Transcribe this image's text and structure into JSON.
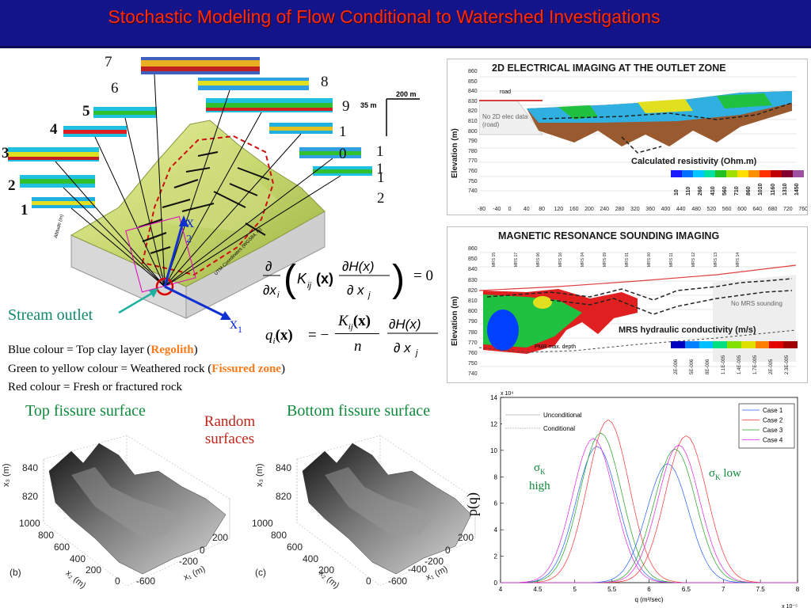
{
  "header": {
    "title": "Stochastic Modeling of Flow Conditional to Watershed Investigations"
  },
  "watershed": {
    "profile_numbers": [
      "1",
      "2",
      "3",
      "4",
      "5",
      "6",
      "7",
      "8",
      "9",
      "10",
      "11",
      "12"
    ],
    "scale_label": "200 m",
    "vertical_scale_label": "35 m",
    "axis_x_label": "x",
    "axis_x_index": "1",
    "axis_x2_label": "x",
    "axis_x2_index": "2",
    "stream_outlet": "Stream outlet",
    "axis_text_1": "UTM Coordinates (WGS84, m)",
    "axis_text_2": "Altitude (m)"
  },
  "equations": {
    "eq1_tail": "= 0",
    "eq2_head": "q",
    "eq2_sub": "i",
    "eq2_x": "(x)",
    "eq2_eq": "= −",
    "eq2_num": "K",
    "eq2_numsub": "ij",
    "eq2_den": "n"
  },
  "legend_text": {
    "line1_pre": "Blue colour = Top clay layer (",
    "line1_hl": "Regolith",
    "line1_post": ")",
    "line2_pre": "Green to yellow colour = Weathered rock (",
    "line2_hl": "Fissured zone",
    "line2_post": ")",
    "line3": "Red colour = Fresh or fractured rock"
  },
  "surfaces": {
    "top_title": "Top fissure surface",
    "bottom_title": "Bottom fissure surface",
    "random_line1": "Random",
    "random_line2": "surfaces",
    "z_label": "x₃ (m)",
    "x_label": "x₂ (m)",
    "y_label": "x₁ (m)",
    "z_ticks": [
      "840",
      "820"
    ],
    "x_ticks": [
      "1000",
      "800",
      "600",
      "400",
      "200",
      "0"
    ],
    "y_ticks": [
      "200",
      "0",
      "-200",
      "-400",
      "-600"
    ],
    "tag_b": "(b)",
    "tag_c": "(c)"
  },
  "electrical": {
    "title": "2D ELECTRICAL IMAGING AT THE OUTLET  ZONE",
    "ylabel": "Elevation (m)",
    "road_label": "road",
    "no_data": "No 2D elec data (road)",
    "colorbar_title": "Calculated resistivity (Ohm.m)",
    "colorbar_ticks": [
      "10",
      "110",
      "260",
      "410",
      "560",
      "710",
      "860",
      "1010",
      "1160",
      "1310",
      "1450"
    ],
    "colorbar_colors": [
      "#1a1aff",
      "#0070ff",
      "#00c8ff",
      "#00e0a0",
      "#20c020",
      "#a0e000",
      "#ffe000",
      "#ff9000",
      "#ff3000",
      "#c00000",
      "#800030",
      "#a050a0"
    ],
    "yticks": [
      "860",
      "850",
      "840",
      "830",
      "820",
      "810",
      "800",
      "790",
      "780",
      "770",
      "760",
      "750",
      "740"
    ],
    "xticks": [
      "-80",
      "-40",
      "0",
      "40",
      "80",
      "120",
      "160",
      "200",
      "240",
      "280",
      "320",
      "360",
      "400",
      "440",
      "480",
      "520",
      "560",
      "600",
      "640",
      "680",
      "720",
      "760"
    ]
  },
  "mrs": {
    "title": "MAGNETIC RESONANCE SOUNDING IMAGING",
    "ylabel": "Elevation (m)",
    "no_data": "No MRS sounding",
    "colorbar_title": "MRS hydraulic conductivity (m/s)",
    "pmr_label": "PMR max. depth",
    "colorbar_ticks": [
      "2E-006",
      "5E-006",
      "8E-006",
      "1.1E-005",
      "1.4E-005",
      "1.7E-005",
      "2E-005",
      "2.3E-005"
    ],
    "colorbar_colors": [
      "#0000c0",
      "#0080ff",
      "#00c0ff",
      "#00e080",
      "#80e000",
      "#e0e000",
      "#ff8000",
      "#e00000",
      "#a00000"
    ],
    "yticks": [
      "860",
      "850",
      "840",
      "830",
      "820",
      "810",
      "800",
      "790",
      "780",
      "770",
      "760",
      "750",
      "740"
    ],
    "sounding_labels": [
      "MRS 15",
      "MRS 17",
      "MRS 06",
      "MRS 16",
      "MRS 04",
      "MRS 09",
      "MRS 01",
      "MRS 00",
      "MRS 11",
      "MRS 12",
      "MRS 13",
      "MRS 14"
    ]
  },
  "chart_data": {
    "type": "line",
    "xlabel": "q (m³/sec)",
    "ylabel": "p(q)",
    "x_multiplier": "x 10⁻⁵",
    "y_multiplier": "x 10⁴",
    "xlim": [
      4,
      8
    ],
    "ylim": [
      0,
      14
    ],
    "xticks": [
      "4",
      "4.5",
      "5",
      "5.5",
      "6",
      "6.5",
      "7",
      "7.5",
      "8"
    ],
    "yticks": [
      "0",
      "2",
      "4",
      "6",
      "8",
      "10",
      "12",
      "14"
    ],
    "legend_style": [
      "Unconditional",
      "Conditional"
    ],
    "legend_cases": [
      "Case 1",
      "Case 2",
      "Case 3",
      "Case 4"
    ],
    "annotation_high": "σK high",
    "annotation_low": "σK low",
    "annotation_sigma": "σ",
    "annotation_k": "K",
    "annotation_high_word": "high",
    "annotation_low_word": "low",
    "series": [
      {
        "name": "Case 1",
        "group": "high",
        "peak_x": 5.3,
        "peak_y": 10.3,
        "color": "#2060ff"
      },
      {
        "name": "Case 2",
        "group": "high",
        "peak_x": 5.45,
        "peak_y": 12.3,
        "color": "#ff3030"
      },
      {
        "name": "Case 3",
        "group": "high",
        "peak_x": 5.35,
        "peak_y": 11.3,
        "color": "#20a020"
      },
      {
        "name": "Case 4",
        "group": "high",
        "peak_x": 5.25,
        "peak_y": 10.9,
        "color": "#e020e0"
      },
      {
        "name": "Case 1",
        "group": "low",
        "peak_x": 6.25,
        "peak_y": 9.0,
        "color": "#2060ff"
      },
      {
        "name": "Case 2",
        "group": "low",
        "peak_x": 6.5,
        "peak_y": 11.1,
        "color": "#ff3030"
      },
      {
        "name": "Case 3",
        "group": "low",
        "peak_x": 6.35,
        "peak_y": 10.1,
        "color": "#20a020"
      },
      {
        "name": "Case 4",
        "group": "low",
        "peak_x": 6.4,
        "peak_y": 10.4,
        "color": "#e020e0"
      }
    ],
    "legend_colors": [
      "#2060ff",
      "#ff3030",
      "#20a020",
      "#e020e0"
    ]
  }
}
